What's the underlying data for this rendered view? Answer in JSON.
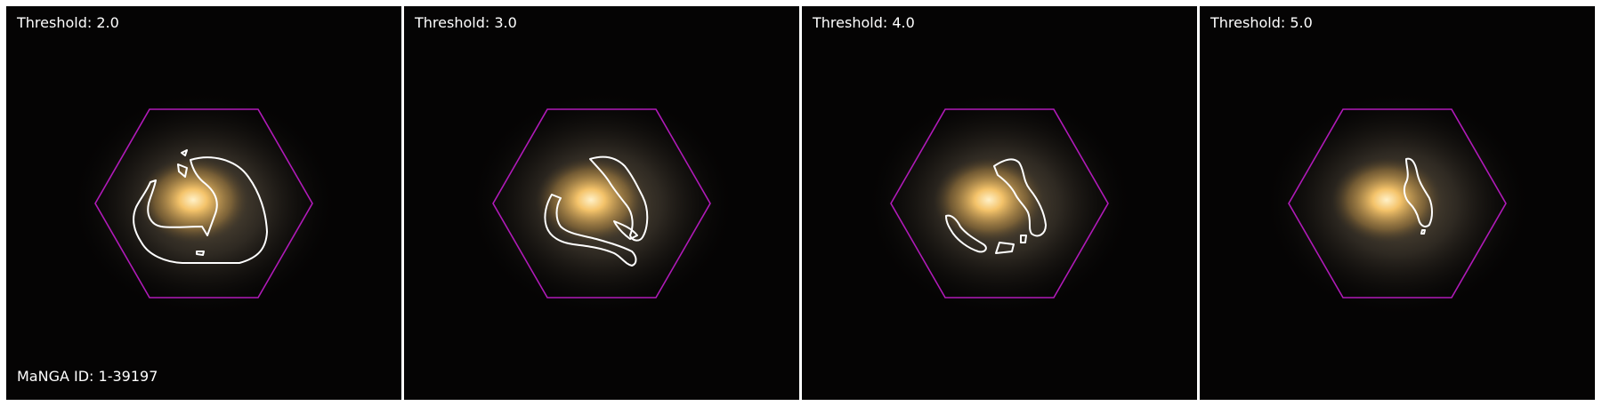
{
  "panels": [
    {
      "threshold_label": "Threshold: 2.0",
      "threshold": 2.0
    },
    {
      "threshold_label": "Threshold: 3.0",
      "threshold": 3.0
    },
    {
      "threshold_label": "Threshold: 4.0",
      "threshold": 4.0
    },
    {
      "threshold_label": "Threshold: 5.0",
      "threshold": 5.0
    }
  ],
  "manga_id_label": "MaNGA ID: 1-39197",
  "colors": {
    "background": "#050404",
    "ifu_hexagon": "#b01ab8",
    "contour": "#ffffff",
    "galaxy_core": "#f4c36a",
    "separator": "#ffffff"
  }
}
